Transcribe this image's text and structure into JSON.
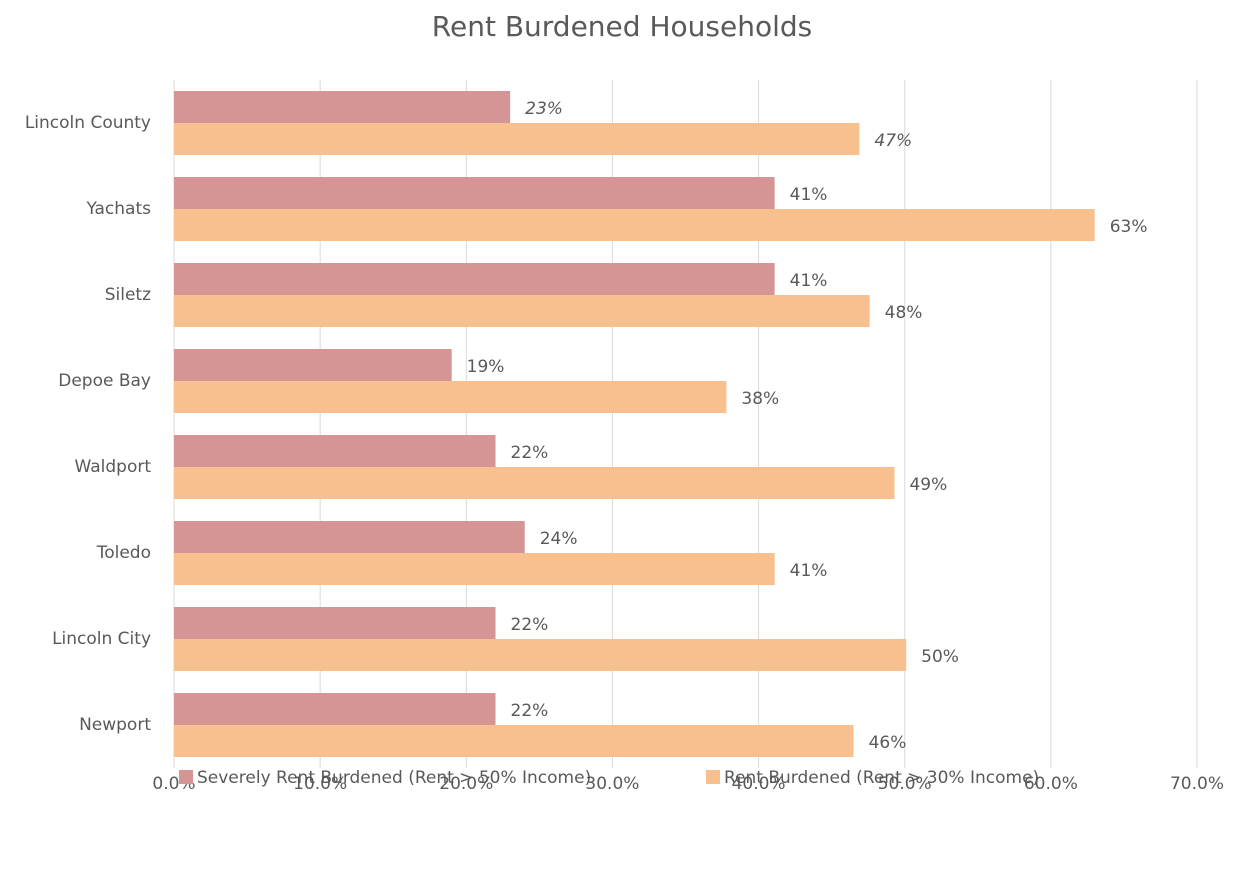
{
  "chart_data": {
    "type": "barh",
    "title": "Rent Burdened Households",
    "categories": [
      "Lincoln County",
      "Yachats",
      "Siletz",
      "Depoe Bay",
      "Waldport",
      "Toledo",
      "Lincoln City",
      "Newport"
    ],
    "series": [
      {
        "name": "Severely Rent Burdened (Rent > 50% Income)",
        "color": "#d69595",
        "values": [
          23.0,
          41.1,
          41.1,
          19.0,
          22.0,
          24.0,
          22.0,
          22.0
        ],
        "value_labels": [
          "23%",
          "41%",
          "41%",
          "19%",
          "22%",
          "24%",
          "22%",
          "22%"
        ]
      },
      {
        "name": "Rent Burdened (Rent > 30% Income)",
        "color": "#f9c08f",
        "values": [
          46.9,
          63.0,
          47.6,
          37.8,
          49.3,
          41.1,
          50.1,
          46.5
        ],
        "value_labels": [
          "47%",
          "63%",
          "48%",
          "38%",
          "49%",
          "41%",
          "50%",
          "46%"
        ]
      }
    ],
    "xlim": [
      0,
      70
    ],
    "xticks": [
      {
        "value": 0,
        "label": "0.0%"
      },
      {
        "value": 10,
        "label": "10.0%"
      },
      {
        "value": 20,
        "label": "20.0%"
      },
      {
        "value": 30,
        "label": "30.0%"
      },
      {
        "value": 40,
        "label": "40.0%"
      },
      {
        "value": 50,
        "label": "50.0%"
      },
      {
        "value": 60,
        "label": "60.0%"
      },
      {
        "value": 70,
        "label": "70.0%"
      }
    ],
    "grid": true,
    "legend": "bottom"
  }
}
